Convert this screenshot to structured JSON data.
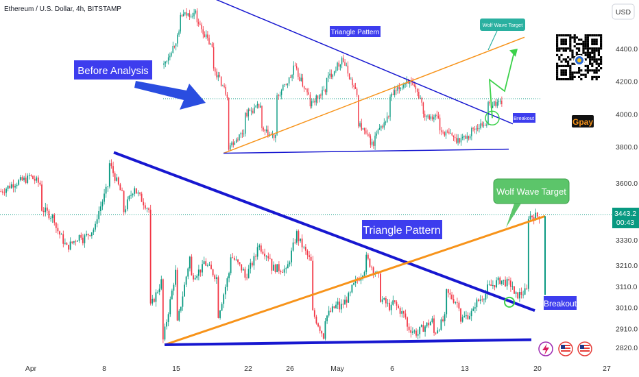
{
  "header": {
    "title": "Ethereum / U.S. Dollar, 4h, BITSTAMP"
  },
  "currency_button": "USD",
  "price_badge": {
    "price": "3443.2",
    "countdown": "00:43"
  },
  "colors": {
    "up": "#089981",
    "down": "#f23645",
    "trend": "#1717d0",
    "support": "#1717d0",
    "wolf": "#f7931a",
    "target_box": "#5cc56a",
    "breakout": "#3d3dee",
    "inset_arrow": "#2a4de0"
  },
  "main_labels": {
    "triangle": "Triangle Pattern",
    "wolf": "Wolf Wave Target",
    "breakout": "Breakout"
  },
  "inset_labels": {
    "triangle": "Triangle Pattern",
    "wolf": "Wolf Wave Target",
    "breakout": "Breakout",
    "before": "Before Analysis"
  },
  "gpay": "Gpay",
  "chart_data": [
    {
      "type": "line",
      "title": "Ethereum / U.S. Dollar, 4h, BITSTAMP",
      "description": "Main candlestick chart",
      "y_ticks": [
        3600,
        3330,
        3210,
        3110,
        3010,
        2910,
        2820
      ],
      "x_ticks": [
        "Apr",
        "8",
        "15",
        "22",
        "26",
        "May",
        "6",
        "13",
        "20",
        "27"
      ],
      "price_path": [
        [
          3560,
          3600
        ],
        [
          3600,
          3620
        ],
        [
          3640,
          3590
        ],
        [
          3480,
          3430
        ],
        [
          3400,
          3280
        ],
        [
          3300,
          3360
        ],
        [
          3330,
          3390
        ],
        [
          3420,
          3600
        ],
        [
          3700,
          3540
        ],
        [
          3450,
          3600
        ],
        [
          3560,
          3470
        ],
        [
          3000,
          3150
        ],
        [
          2850,
          3200
        ],
        [
          2910,
          3250
        ],
        [
          3150,
          3200
        ],
        [
          3230,
          3150
        ],
        [
          2950,
          3200
        ],
        [
          3260,
          3180
        ],
        [
          3140,
          3270
        ],
        [
          3310,
          3240
        ],
        [
          3200,
          3190
        ],
        [
          3150,
          3380
        ],
        [
          3340,
          3220
        ],
        [
          3000,
          2860
        ],
        [
          2960,
          3030
        ],
        [
          3000,
          3080
        ],
        [
          3100,
          3200
        ],
        [
          3250,
          3150
        ],
        [
          3060,
          3000
        ],
        [
          3040,
          2960
        ],
        [
          2920,
          2880
        ],
        [
          2900,
          2950
        ],
        [
          2880,
          2970
        ],
        [
          3080,
          3020
        ],
        [
          2950,
          2990
        ],
        [
          3020,
          3080
        ],
        [
          3100,
          3140
        ],
        [
          3140,
          3110
        ],
        [
          3060,
          3090
        ],
        [
          3443,
          3443
        ]
      ],
      "series": [
        {
          "name": "Triangle Pattern",
          "line": [
            [
              "Apr 7",
              3745
            ],
            [
              "May 19",
              2995
            ]
          ]
        },
        {
          "name": "Wolf Wave Target",
          "line": [
            [
              "Apr 14",
              2833
            ],
            [
              "May 20",
              3443
            ]
          ]
        },
        {
          "name": "Support",
          "line": [
            [
              "Apr 14",
              2833
            ],
            [
              "May 19",
              2857
            ]
          ]
        }
      ]
    },
    {
      "type": "line",
      "description": "Inset chart (Before Analysis)",
      "y_ticks": [
        4400,
        4200,
        4000,
        3800
      ],
      "price_path": [
        [
          4300,
          4500
        ],
        [
          4600,
          4620
        ],
        [
          4580,
          4400
        ],
        [
          4300,
          4100
        ],
        [
          3800,
          3900
        ],
        [
          4000,
          4050
        ],
        [
          3900,
          3850
        ],
        [
          4100,
          4250
        ],
        [
          4300,
          4100
        ],
        [
          4050,
          4150
        ],
        [
          4200,
          4330
        ],
        [
          4350,
          4100
        ],
        [
          3950,
          3800
        ],
        [
          3850,
          4000
        ],
        [
          4100,
          4200
        ],
        [
          4220,
          4080
        ],
        [
          4000,
          3980
        ],
        [
          3900,
          3860
        ],
        [
          3840,
          3870
        ],
        [
          3900,
          3950
        ],
        [
          4050,
          4080
        ]
      ],
      "series": [
        {
          "name": "Triangle Pattern",
          "line": [
            [
              0.0,
              4710
            ],
            [
              1.0,
              3940
            ]
          ]
        },
        {
          "name": "Wolf Wave Target",
          "line": [
            [
              0.0,
              3760
            ],
            [
              1.0,
              4470
            ]
          ]
        },
        {
          "name": "Support",
          "line": [
            [
              0.0,
              3760
            ],
            [
              1.0,
              3785
            ]
          ]
        }
      ]
    }
  ]
}
